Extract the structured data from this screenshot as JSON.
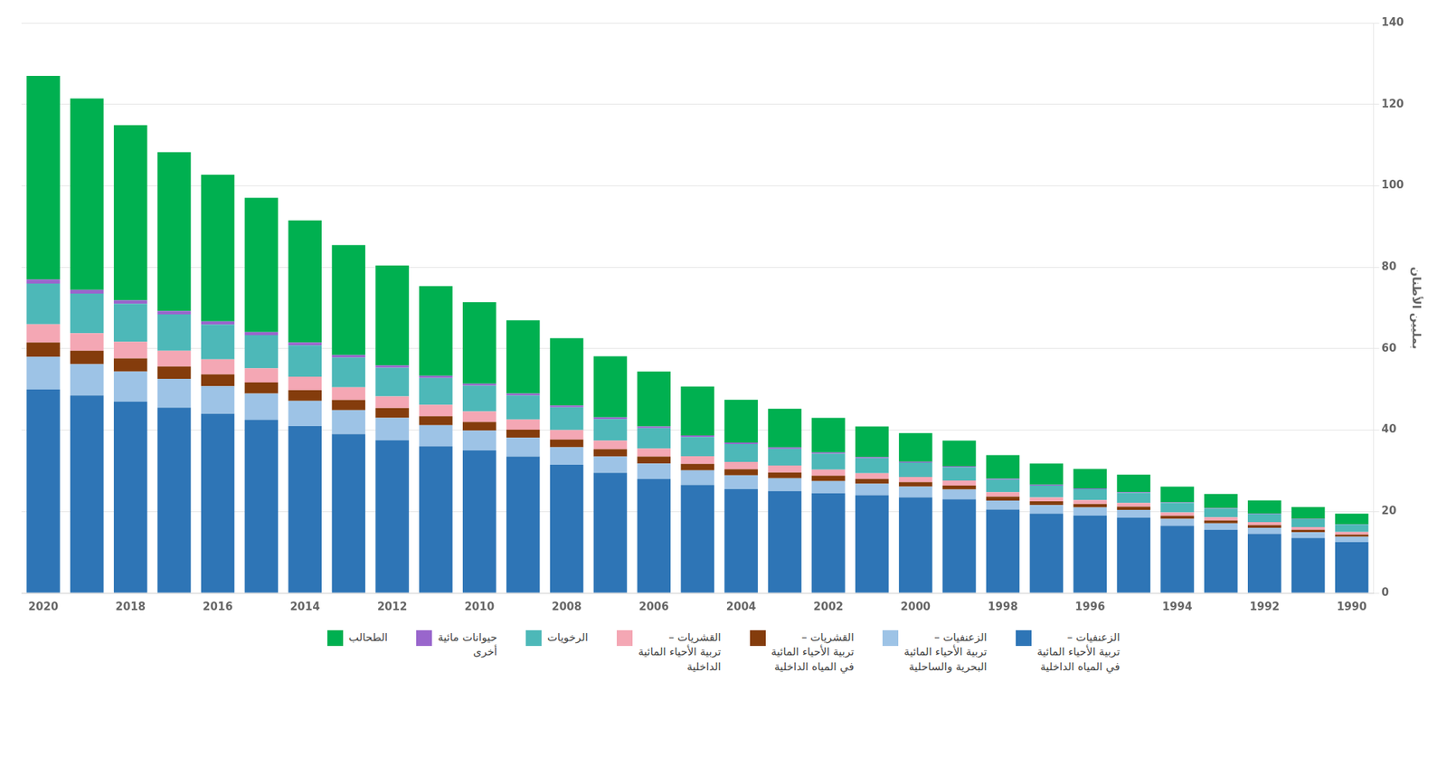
{
  "chart_data": {
    "type": "bar",
    "stacked": true,
    "categories": [
      "2020",
      null,
      "2018",
      null,
      "2016",
      null,
      "2014",
      null,
      "2012",
      null,
      "2010",
      null,
      "2008",
      null,
      "2006",
      null,
      "2004",
      null,
      "2002",
      null,
      "2000",
      null,
      "1998",
      null,
      "1996",
      null,
      "1994",
      null,
      "1992",
      null,
      "1990"
    ],
    "series": [
      {
        "name": "الزعنفيات –\nتربية الأحياء المائية\nفي المياه الداخلية",
        "color": "#2E75B6",
        "values": [
          50.0,
          48.5,
          47.0,
          45.5,
          44.0,
          42.5,
          41.0,
          39.0,
          37.5,
          36.0,
          35.0,
          33.5,
          31.5,
          29.5,
          28.0,
          26.5,
          25.5,
          25.0,
          24.5,
          24.0,
          23.5,
          23.0,
          20.5,
          19.5,
          19.0,
          18.5,
          16.5,
          15.5,
          14.5,
          13.5,
          12.5
        ]
      },
      {
        "name": "الزعنفيات –\nتربية الأحياء المائية\nالبحرية والساحلية",
        "color": "#9DC3E6",
        "values": [
          8.0,
          7.7,
          7.4,
          7.1,
          6.8,
          6.5,
          6.2,
          5.9,
          5.5,
          5.2,
          4.9,
          4.6,
          4.3,
          4.0,
          3.8,
          3.6,
          3.4,
          3.2,
          3.0,
          2.8,
          2.6,
          2.4,
          2.2,
          2.1,
          2.0,
          1.9,
          1.7,
          1.6,
          1.5,
          1.4,
          1.3
        ]
      },
      {
        "name": "القشريات –\nتربية الأحياء المائية\nفي المياه الداخلية",
        "color": "#843C0C",
        "values": [
          3.5,
          3.3,
          3.2,
          3.0,
          2.9,
          2.7,
          2.6,
          2.5,
          2.4,
          2.2,
          2.1,
          2.0,
          1.9,
          1.8,
          1.7,
          1.6,
          1.5,
          1.4,
          1.3,
          1.2,
          1.1,
          1.0,
          0.95,
          0.9,
          0.85,
          0.8,
          0.75,
          0.7,
          0.65,
          0.6,
          0.55
        ]
      },
      {
        "name": "القشريات –\nتربية الأحياء المائية\nالداخلية",
        "color": "#F4A7B4",
        "values": [
          4.5,
          4.3,
          4.1,
          3.9,
          3.7,
          3.5,
          3.3,
          3.1,
          2.9,
          2.8,
          2.6,
          2.5,
          2.3,
          2.1,
          2.0,
          1.9,
          1.8,
          1.7,
          1.5,
          1.4,
          1.3,
          1.2,
          1.1,
          1.0,
          0.95,
          0.9,
          0.85,
          0.8,
          0.75,
          0.7,
          0.65
        ]
      },
      {
        "name": "الرخويات",
        "color": "#4DB8B8",
        "values": [
          10.0,
          9.7,
          9.3,
          8.9,
          8.5,
          8.1,
          7.7,
          7.3,
          7.0,
          6.6,
          6.3,
          5.9,
          5.6,
          5.3,
          5.0,
          4.7,
          4.4,
          4.1,
          3.9,
          3.7,
          3.5,
          3.3,
          3.1,
          2.9,
          2.7,
          2.5,
          2.3,
          2.1,
          2.0,
          1.9,
          1.8
        ]
      },
      {
        "name": "حيوانات مائية\nأخرى",
        "color": "#9966CC",
        "values": [
          1.0,
          0.95,
          0.9,
          0.85,
          0.8,
          0.75,
          0.7,
          0.65,
          0.6,
          0.55,
          0.5,
          0.48,
          0.45,
          0.42,
          0.4,
          0.38,
          0.35,
          0.33,
          0.3,
          0.28,
          0.25,
          0.23,
          0.2,
          0.18,
          0.17,
          0.15,
          0.14,
          0.13,
          0.12,
          0.11,
          0.1
        ]
      },
      {
        "name": "الطحالب",
        "color": "#00B050",
        "values": [
          50.0,
          47.0,
          43.0,
          39.0,
          36.0,
          33.0,
          30.0,
          27.0,
          24.5,
          22.0,
          20.0,
          18.0,
          16.5,
          15.0,
          13.5,
          12.0,
          10.5,
          9.5,
          8.5,
          7.5,
          7.0,
          6.3,
          5.8,
          5.2,
          4.8,
          4.3,
          3.9,
          3.5,
          3.2,
          2.9,
          2.6
        ]
      }
    ],
    "ylabel": "بمليين الأطنان",
    "ylim": [
      0,
      140
    ],
    "yticks": [
      0,
      20,
      40,
      60,
      80,
      100,
      120,
      140
    ],
    "grid": true,
    "legend": "bottom"
  }
}
